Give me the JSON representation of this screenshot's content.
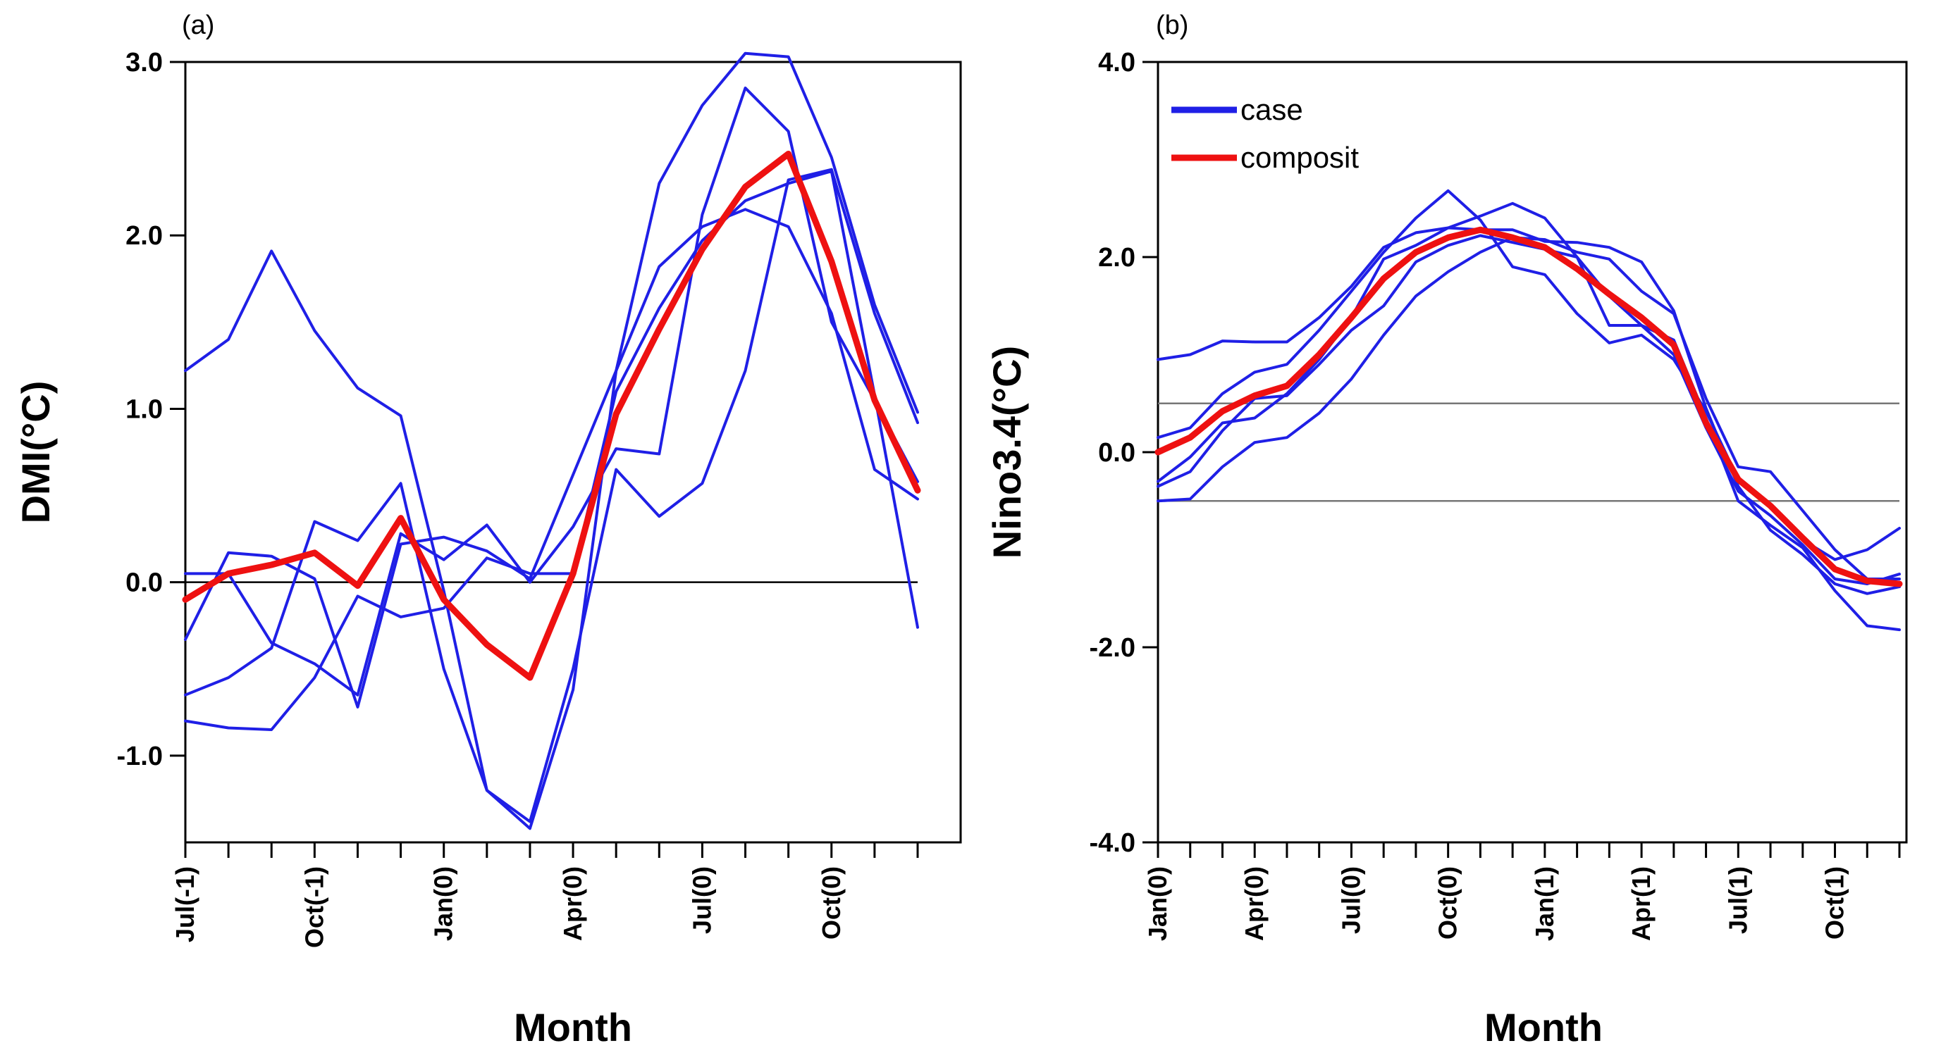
{
  "chart_data": [
    {
      "type": "line",
      "panel_label": "(a)",
      "title": "",
      "xlabel": "Month",
      "ylabel": "DMI(°C)",
      "ylim": [
        -1.5,
        3.0
      ],
      "yticks": [
        -1.0,
        0.0,
        1.0,
        2.0,
        3.0
      ],
      "ytick_labels": [
        "-1.0",
        "0.0",
        "1.0",
        "2.0",
        "3.0"
      ],
      "x_count": 18,
      "xticks": [
        {
          "index": 0,
          "label": "Jul(-1)"
        },
        {
          "index": 3,
          "label": "Oct(-1)"
        },
        {
          "index": 6,
          "label": "Jan(0)"
        },
        {
          "index": 9,
          "label": "Apr(0)"
        },
        {
          "index": 12,
          "label": "Jul(0)"
        },
        {
          "index": 15,
          "label": "Oct(0)"
        }
      ],
      "reference_lines": [
        0.0
      ],
      "grid": false,
      "series": [
        {
          "role": "case",
          "color": "#1f1fe6",
          "values": [
            1.22,
            1.4,
            1.91,
            1.45,
            1.12,
            0.96,
            -0.05,
            -1.2,
            -1.38,
            -0.5,
            0.65,
            0.38,
            0.57,
            1.22,
            2.32,
            2.38,
            1.55,
            0.92
          ]
        },
        {
          "role": "case",
          "color": "#1f1fe6",
          "values": [
            -0.33,
            0.17,
            0.15,
            0.02,
            -0.72,
            0.22,
            0.26,
            0.18,
            0.02,
            0.62,
            1.22,
            1.82,
            2.05,
            2.15,
            2.05,
            1.55,
            0.65,
            0.48
          ]
        },
        {
          "role": "case",
          "color": "#1f1fe6",
          "values": [
            0.05,
            0.05,
            -0.35,
            -0.47,
            -0.65,
            0.28,
            0.13,
            0.33,
            0.0,
            0.32,
            0.77,
            0.74,
            2.12,
            2.85,
            2.6,
            1.5,
            1.05,
            0.58
          ]
        },
        {
          "role": "case",
          "color": "#1f1fe6",
          "values": [
            -0.65,
            -0.55,
            -0.38,
            0.35,
            0.24,
            0.57,
            -0.5,
            -1.2,
            -1.42,
            -0.62,
            1.22,
            2.3,
            2.75,
            3.05,
            3.03,
            2.45,
            1.6,
            0.98
          ]
        },
        {
          "role": "case",
          "color": "#1f1fe6",
          "values": [
            -0.8,
            -0.84,
            -0.85,
            -0.55,
            -0.08,
            -0.2,
            -0.15,
            0.14,
            0.05,
            0.05,
            1.1,
            1.58,
            1.97,
            2.2,
            2.3,
            2.37,
            1.08,
            -0.26
          ]
        },
        {
          "role": "composite",
          "color": "#ee1111",
          "values": [
            -0.1,
            0.05,
            0.1,
            0.17,
            -0.02,
            0.37,
            -0.1,
            -0.36,
            -0.55,
            0.05,
            0.97,
            1.46,
            1.92,
            2.28,
            2.47,
            1.85,
            1.05,
            0.53
          ]
        }
      ]
    },
    {
      "type": "line",
      "panel_label": "(b)",
      "title": "",
      "xlabel": "Month",
      "ylabel": "Nino3.4(°C)",
      "ylim": [
        -4.0,
        4.0
      ],
      "yticks": [
        -4.0,
        -2.0,
        0.0,
        2.0,
        4.0
      ],
      "ytick_labels": [
        "-4.0",
        "-2.0",
        "0.0",
        "2.0",
        "4.0"
      ],
      "x_count": 24,
      "xticks": [
        {
          "index": 0,
          "label": "Jan(0)"
        },
        {
          "index": 3,
          "label": "Apr(0)"
        },
        {
          "index": 6,
          "label": "Jul(0)"
        },
        {
          "index": 9,
          "label": "Oct(0)"
        },
        {
          "index": 12,
          "label": "Jan(1)"
        },
        {
          "index": 15,
          "label": "Apr(1)"
        },
        {
          "index": 18,
          "label": "Jul(1)"
        },
        {
          "index": 21,
          "label": "Oct(1)"
        }
      ],
      "reference_lines": [
        0.5,
        -0.5
      ],
      "grid": false,
      "legend": {
        "placement": "top-left",
        "entries": [
          {
            "label": "case",
            "color": "#1f1fe6"
          },
          {
            "label": "composit",
            "color": "#ee1111"
          }
        ]
      },
      "series": [
        {
          "role": "case",
          "color": "#1f1fe6",
          "values": [
            0.95,
            1.0,
            1.14,
            1.13,
            1.13,
            1.38,
            1.7,
            2.1,
            2.25,
            2.3,
            2.28,
            2.28,
            2.16,
            2.15,
            2.1,
            1.95,
            1.45,
            0.45,
            -0.35,
            -0.8,
            -1.05,
            -1.35,
            -1.45,
            -1.38
          ]
        },
        {
          "role": "case",
          "color": "#1f1fe6",
          "values": [
            0.15,
            0.25,
            0.6,
            0.82,
            0.9,
            1.25,
            1.65,
            2.05,
            2.4,
            2.68,
            2.38,
            1.9,
            1.82,
            1.42,
            1.12,
            1.2,
            0.95,
            0.42,
            -0.28,
            -0.55,
            -0.9,
            -1.1,
            -1.0,
            -0.78
          ]
        },
        {
          "role": "case",
          "color": "#1f1fe6",
          "values": [
            -0.3,
            -0.05,
            0.3,
            0.35,
            0.6,
            0.95,
            1.38,
            1.98,
            2.12,
            2.3,
            2.42,
            2.55,
            2.4,
            2.0,
            1.6,
            1.3,
            1.0,
            0.25,
            -0.4,
            -0.65,
            -0.95,
            -1.3,
            -1.35,
            -1.25
          ]
        },
        {
          "role": "case",
          "color": "#1f1fe6",
          "values": [
            -0.5,
            -0.48,
            -0.15,
            0.1,
            0.15,
            0.4,
            0.75,
            1.2,
            1.6,
            1.85,
            2.05,
            2.2,
            2.18,
            2.05,
            1.98,
            1.65,
            1.42,
            0.55,
            -0.15,
            -0.2,
            -0.6,
            -1.0,
            -1.3,
            -1.3
          ]
        },
        {
          "role": "case",
          "color": "#1f1fe6",
          "values": [
            -0.35,
            -0.2,
            0.22,
            0.55,
            0.58,
            0.9,
            1.25,
            1.5,
            1.95,
            2.12,
            2.22,
            2.15,
            2.08,
            2.0,
            1.3,
            1.3,
            1.15,
            0.35,
            -0.5,
            -0.75,
            -0.98,
            -1.42,
            -1.78,
            -1.82
          ]
        },
        {
          "role": "composite",
          "color": "#ee1111",
          "values": [
            0.0,
            0.15,
            0.42,
            0.58,
            0.68,
            1.0,
            1.38,
            1.78,
            2.05,
            2.2,
            2.28,
            2.2,
            2.1,
            1.88,
            1.62,
            1.38,
            1.1,
            0.3,
            -0.28,
            -0.55,
            -0.88,
            -1.2,
            -1.32,
            -1.35
          ]
        }
      ]
    }
  ]
}
